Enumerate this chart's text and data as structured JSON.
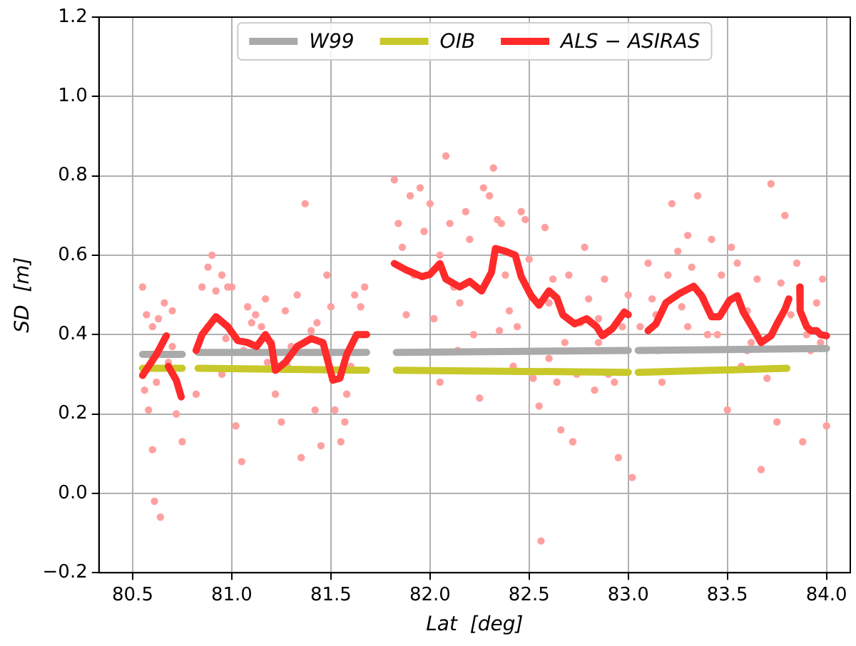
{
  "chart_data": {
    "type": "scatter",
    "xlabel": "Lat  [deg]",
    "ylabel": "SD  [m]",
    "xlim": [
      80.33,
      84.12
    ],
    "ylim": [
      -0.2,
      1.2
    ],
    "xticks": [
      80.5,
      {
        "value": 81,
        "label": "81.0"
      },
      81.5,
      {
        "value": 82,
        "label": "82.0"
      },
      82.5,
      {
        "value": 83,
        "label": "83.0"
      },
      83.5,
      {
        "value": 84,
        "label": "84.0"
      }
    ],
    "yticks": [
      {
        "value": -0.2,
        "label": "−0.2"
      },
      {
        "value": 0,
        "label": "0.0"
      },
      0.2,
      0.4,
      0.6,
      0.8,
      {
        "value": 1,
        "label": "1.0"
      },
      1.2
    ],
    "grid": true,
    "legend": "top",
    "series": [
      {
        "color": "#ffa0a0",
        "marker": "circle",
        "x": [
          80.55,
          80.57,
          80.58,
          80.6,
          80.61,
          80.64,
          80.56,
          80.63,
          80.66,
          80.68,
          80.7,
          80.72,
          80.75,
          80.6,
          80.62,
          80.7,
          80.82,
          80.85,
          80.88,
          80.9,
          80.92,
          80.95,
          80.97,
          80.98,
          81.0,
          81.02,
          81.05,
          81.08,
          81.1,
          81.12,
          81.15,
          81.17,
          81.2,
          81.22,
          81.25,
          81.27,
          81.3,
          81.33,
          81.35,
          81.37,
          81.4,
          81.42,
          81.45,
          81.48,
          81.5,
          81.52,
          81.55,
          81.57,
          81.6,
          81.62,
          81.65,
          81.67,
          80.88,
          81.06,
          81.28,
          81.43,
          81.58,
          80.95,
          81.18,
          81.82,
          81.84,
          81.86,
          81.9,
          81.92,
          81.95,
          81.97,
          82.0,
          82.02,
          82.05,
          82.08,
          82.1,
          82.12,
          82.15,
          82.18,
          82.2,
          82.22,
          82.25,
          82.27,
          82.3,
          82.32,
          82.34,
          82.36,
          82.38,
          82.4,
          82.42,
          82.44,
          82.46,
          82.48,
          82.5,
          82.52,
          82.55,
          82.56,
          82.58,
          82.6,
          82.62,
          82.64,
          82.66,
          82.68,
          82.7,
          82.72,
          82.74,
          82.76,
          82.78,
          82.8,
          82.83,
          82.85,
          82.88,
          82.9,
          82.93,
          82.95,
          82.97,
          83.0,
          81.88,
          82.14,
          82.35,
          82.6,
          82.85,
          82.05,
          83.02,
          83.06,
          83.1,
          83.12,
          83.15,
          83.17,
          83.2,
          83.22,
          83.25,
          83.27,
          83.3,
          83.32,
          83.35,
          83.38,
          83.4,
          83.42,
          83.45,
          83.47,
          83.5,
          83.52,
          83.55,
          83.57,
          83.6,
          83.62,
          83.65,
          83.67,
          83.7,
          83.72,
          83.75,
          83.77,
          83.79,
          83.82,
          83.85,
          83.88,
          83.9,
          83.92,
          83.95,
          83.98,
          84.0,
          83.97,
          83.3,
          83.6,
          83.14
        ],
        "values": [
          0.52,
          0.45,
          0.21,
          0.11,
          -0.02,
          -0.06,
          0.26,
          0.44,
          0.48,
          0.33,
          0.37,
          0.2,
          0.13,
          0.42,
          0.28,
          0.46,
          0.25,
          0.52,
          0.57,
          0.6,
          0.51,
          0.55,
          0.39,
          0.52,
          0.52,
          0.17,
          0.08,
          0.47,
          0.43,
          0.45,
          0.42,
          0.49,
          0.38,
          0.25,
          0.18,
          0.46,
          0.37,
          0.5,
          0.09,
          0.73,
          0.41,
          0.21,
          0.12,
          0.55,
          0.47,
          0.21,
          0.13,
          0.18,
          0.32,
          0.5,
          0.47,
          0.52,
          0.42,
          0.36,
          0.32,
          0.43,
          0.25,
          0.3,
          0.33,
          0.79,
          0.68,
          0.62,
          0.75,
          0.55,
          0.77,
          0.66,
          0.73,
          0.44,
          0.6,
          0.85,
          0.68,
          0.52,
          0.48,
          0.71,
          0.64,
          0.4,
          0.24,
          0.77,
          0.75,
          0.82,
          0.69,
          0.68,
          0.55,
          0.46,
          0.32,
          0.42,
          0.71,
          0.69,
          0.59,
          0.29,
          0.22,
          -0.12,
          0.67,
          0.48,
          0.54,
          0.28,
          0.16,
          0.38,
          0.55,
          0.13,
          0.3,
          0.43,
          0.62,
          0.49,
          0.26,
          0.38,
          0.54,
          0.3,
          0.28,
          0.09,
          0.42,
          0.5,
          0.45,
          0.36,
          0.41,
          0.34,
          0.44,
          0.28,
          0.04,
          0.42,
          0.58,
          0.49,
          0.36,
          0.28,
          0.55,
          0.73,
          0.61,
          0.47,
          0.65,
          0.57,
          0.75,
          0.49,
          0.4,
          0.64,
          0.4,
          0.55,
          0.21,
          0.62,
          0.58,
          0.32,
          0.46,
          0.38,
          0.54,
          0.06,
          0.29,
          0.78,
          0.18,
          0.53,
          0.7,
          0.45,
          0.58,
          0.13,
          0.4,
          0.36,
          0.48,
          0.54,
          0.17,
          0.38,
          0.42,
          0.36,
          0.45
        ]
      },
      {
        "type": "line",
        "name": "W99",
        "color": "#aaaaaa",
        "marker": "none",
        "line_style": "solid",
        "x": [
          80.55,
          80.75,
          80.79,
          80.83,
          81.68,
          81.75,
          81.83,
          83.0,
          83.03,
          83.05,
          84.0
        ],
        "values": [
          0.35,
          0.35,
          null,
          0.355,
          0.355,
          null,
          0.355,
          0.36,
          null,
          0.36,
          0.365
        ]
      },
      {
        "type": "line",
        "name": "OIB",
        "color": "#c8c82a",
        "marker": "none",
        "line_style": "solid",
        "x": [
          80.55,
          80.75,
          80.79,
          80.83,
          81.68,
          81.75,
          81.83,
          83.0,
          83.03,
          83.05,
          83.8
        ],
        "values": [
          0.315,
          0.315,
          null,
          0.315,
          0.31,
          null,
          0.31,
          0.305,
          null,
          0.305,
          0.315
        ]
      },
      {
        "type": "line",
        "name": "ALS − ASIRAS",
        "color": "#ff2a2a",
        "marker": "none",
        "line_style": "solid",
        "x": [
          80.55,
          80.62,
          80.67,
          80.675,
          80.68,
          80.72,
          80.745,
          80.78,
          80.82,
          80.85,
          80.92,
          80.98,
          81.03,
          81.08,
          81.125,
          81.17,
          81.2,
          81.22,
          81.27,
          81.33,
          81.4,
          81.46,
          81.51,
          81.545,
          81.58,
          81.63,
          81.68,
          81.75,
          81.82,
          81.88,
          81.96,
          82.0,
          82.05,
          82.08,
          82.15,
          82.2,
          82.26,
          82.31,
          82.33,
          82.38,
          82.43,
          82.46,
          82.51,
          82.55,
          82.6,
          82.64,
          82.67,
          82.73,
          82.79,
          82.84,
          82.87,
          82.92,
          82.98,
          83.0,
          83.05,
          83.1,
          83.14,
          83.19,
          83.26,
          83.33,
          83.37,
          83.42,
          83.46,
          83.51,
          83.55,
          83.58,
          83.63,
          83.67,
          83.72,
          83.75,
          83.79,
          83.81,
          83.835,
          83.865,
          83.867,
          83.9,
          83.92,
          83.95,
          83.97,
          84.0
        ],
        "values": [
          0.297,
          0.35,
          0.397,
          null,
          0.32,
          0.285,
          0.243,
          null,
          0.36,
          0.4,
          0.445,
          0.42,
          0.385,
          0.38,
          0.37,
          0.4,
          0.375,
          0.31,
          0.33,
          0.37,
          0.39,
          0.38,
          0.285,
          0.29,
          0.35,
          0.4,
          0.4,
          null,
          0.579,
          0.563,
          0.546,
          0.552,
          0.579,
          0.54,
          0.52,
          0.534,
          0.51,
          0.557,
          0.617,
          0.61,
          0.6,
          0.546,
          0.498,
          0.474,
          0.51,
          0.492,
          0.45,
          0.427,
          0.44,
          0.42,
          0.397,
          0.415,
          0.457,
          0.45,
          null,
          0.41,
          0.427,
          0.48,
          0.504,
          0.522,
          0.498,
          0.445,
          0.445,
          0.486,
          0.498,
          0.457,
          0.415,
          0.38,
          0.397,
          0.427,
          0.463,
          0.49,
          null,
          0.52,
          0.46,
          0.42,
          0.41,
          0.41,
          0.4,
          0.397
        ]
      }
    ]
  }
}
